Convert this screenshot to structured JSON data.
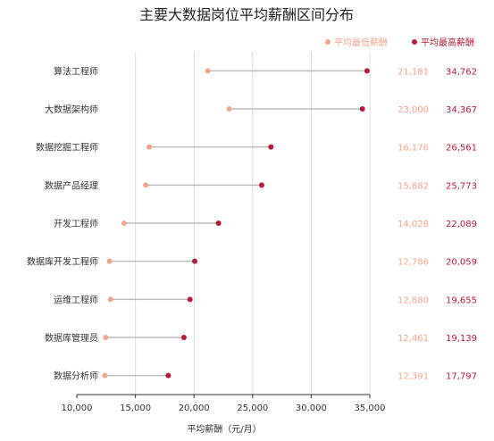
{
  "chart_data": {
    "type": "dumbbell",
    "title": "主要大数据岗位平均薪酬区间分布",
    "xlabel": "平均薪酬（元/月）",
    "xlim": [
      10000,
      35000
    ],
    "x_ticks": [
      10000,
      15000,
      20000,
      25000,
      30000,
      35000
    ],
    "x_tick_labels": [
      "10,000",
      "15,000",
      "20,000",
      "25,000",
      "30,000",
      "35,000"
    ],
    "grid": "vertical",
    "legend_position": "top-right",
    "categories": [
      "算法工程师",
      "大数据架构师",
      "数据挖掘工程师",
      "数据产品经理",
      "开发工程师",
      "数据库开发工程师",
      "运维工程师",
      "数据库管理员",
      "数据分析师"
    ],
    "series": [
      {
        "name": "平均最低薪酬",
        "color": "#f2a48c",
        "values": [
          21181,
          23000,
          16176,
          15882,
          14028,
          12786,
          12880,
          12461,
          12391
        ],
        "labels": [
          "21,181",
          "23,000",
          "16,176",
          "15,882",
          "14,028",
          "12,786",
          "12,880",
          "12,461",
          "12,391"
        ]
      },
      {
        "name": "平均最高薪酬",
        "color": "#b21d3b",
        "values": [
          34762,
          34367,
          26561,
          25773,
          22089,
          20059,
          19655,
          19139,
          17797
        ],
        "labels": [
          "34,762",
          "34,367",
          "26,561",
          "25,773",
          "22,089",
          "20,059",
          "19,655",
          "19,139",
          "17,797"
        ]
      }
    ]
  }
}
